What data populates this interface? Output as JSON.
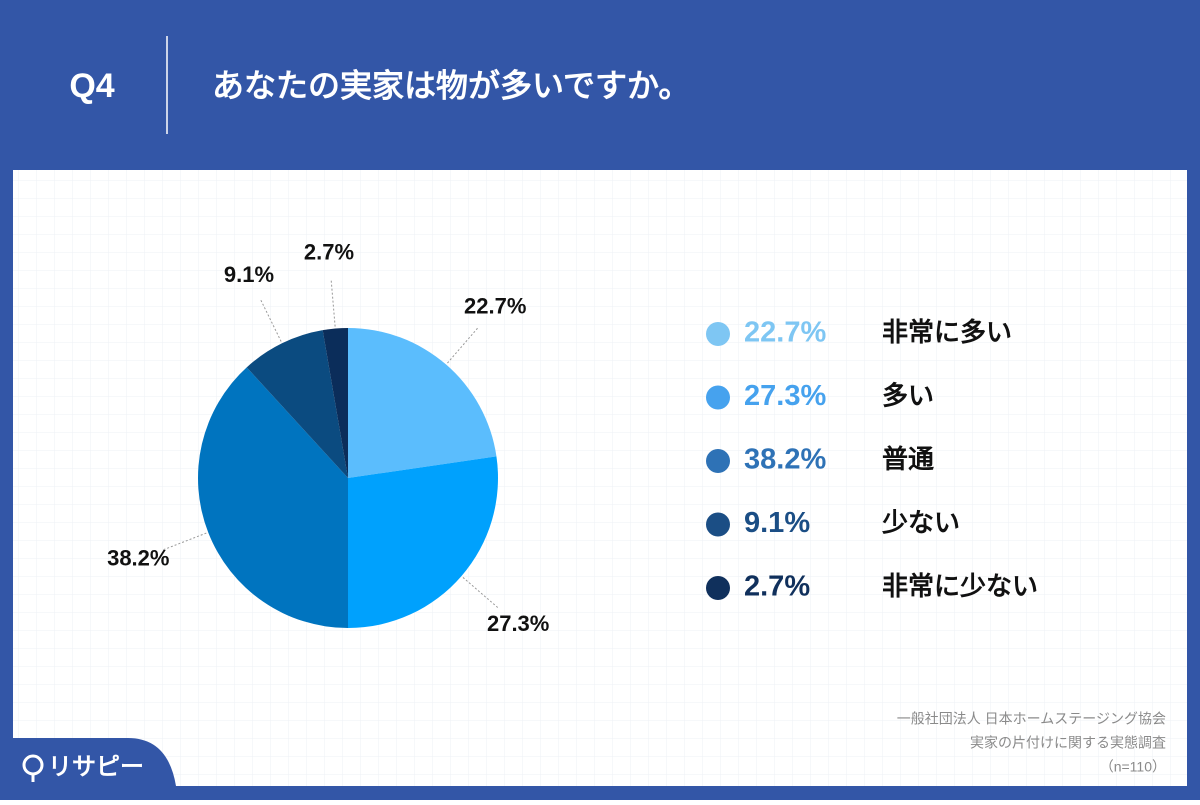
{
  "chart_data": {
    "type": "pie",
    "question_label": "Q4",
    "title": "あなたの実家は物が多いですか。",
    "categories": [
      "非常に多い",
      "多い",
      "普通",
      "少ない",
      "非常に少ない"
    ],
    "values": [
      22.7,
      27.3,
      38.2,
      9.1,
      2.7
    ],
    "value_labels": [
      "22.7%",
      "27.3%",
      "38.2%",
      "9.1%",
      "2.7%"
    ],
    "colors": [
      "#5bbdfd",
      "#00a1fd",
      "#0074bf",
      "#0b4b80",
      "#0b2d5a"
    ],
    "legend_colors": [
      "#7ec6f3",
      "#46a2ee",
      "#2e72b6",
      "#1b4e85",
      "#10305c"
    ],
    "legend": "right",
    "source": [
      "一般社団法人 日本ホームステージング協会",
      "実家の片付けに関する実態調査",
      "（n=110）"
    ],
    "brand": "リサピー"
  }
}
